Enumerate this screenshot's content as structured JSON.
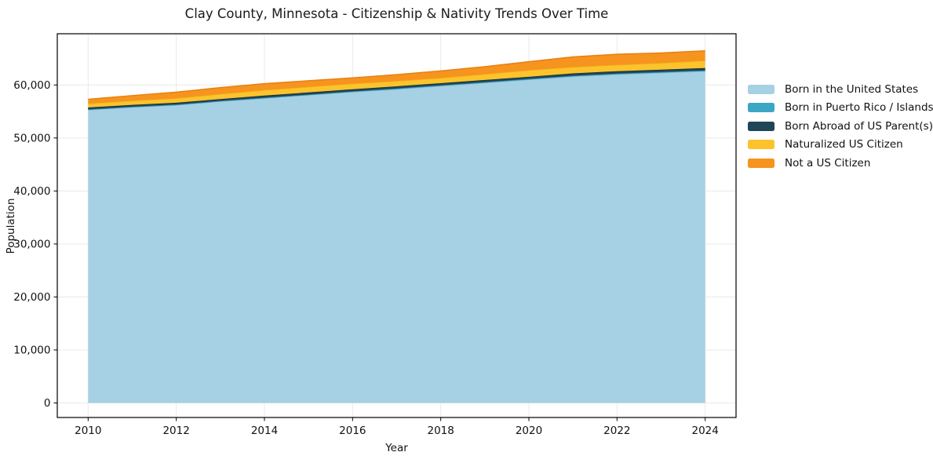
{
  "chart_data": {
    "type": "area",
    "variant": "stacked",
    "title": "Clay County, Minnesota - Citizenship & Nativity Trends Over Time",
    "xlabel": "Year",
    "ylabel": "Population",
    "x": [
      2010,
      2011,
      2012,
      2013,
      2014,
      2015,
      2016,
      2017,
      2018,
      2019,
      2020,
      2021,
      2022,
      2023,
      2024
    ],
    "series": [
      {
        "name": "Born in the United States",
        "color": "#a6d0e4",
        "edge_color": "#8cc0d8",
        "values": [
          55300,
          55800,
          56200,
          56900,
          57500,
          58100,
          58700,
          59200,
          59800,
          60400,
          61000,
          61600,
          62000,
          62300,
          62600
        ]
      },
      {
        "name": "Born in Puerto Rico / Islands",
        "color": "#3da6c2",
        "edge_color": "#2e8dad",
        "values": [
          100,
          100,
          100,
          100,
          100,
          100,
          100,
          150,
          150,
          150,
          150,
          150,
          150,
          150,
          150
        ]
      },
      {
        "name": "Born Abroad of US Parent(s)",
        "color": "#1f4557",
        "edge_color": "#152f3d",
        "values": [
          350,
          350,
          350,
          350,
          400,
          400,
          400,
          400,
          400,
          400,
          400,
          450,
          450,
          450,
          450
        ]
      },
      {
        "name": "Naturalized US Citizen",
        "color": "#fcc32d",
        "edge_color": "#edb118",
        "values": [
          750,
          800,
          850,
          950,
          1050,
          1050,
          1050,
          1000,
          1000,
          1100,
          1250,
          1200,
          1200,
          1250,
          1400
        ]
      },
      {
        "name": "Not a US Citizen",
        "color": "#f6941f",
        "edge_color": "#e8800e",
        "values": [
          800,
          950,
          1150,
          1200,
          1200,
          1150,
          1100,
          1200,
          1300,
          1400,
          1600,
          1900,
          2000,
          1900,
          1850
        ]
      }
    ],
    "xlim": [
      2009.3,
      2024.7
    ],
    "ylim": [
      -2740,
      69670
    ],
    "xticks": {
      "values": [
        2010,
        2012,
        2014,
        2016,
        2018,
        2020,
        2022,
        2024
      ],
      "labels": [
        "2010",
        "2012",
        "2014",
        "2016",
        "2018",
        "2020",
        "2022",
        "2024"
      ]
    },
    "yticks": {
      "values": [
        0,
        10000,
        20000,
        30000,
        40000,
        50000,
        60000
      ],
      "labels": [
        "0",
        "10,000",
        "20,000",
        "30,000",
        "40,000",
        "50,000",
        "60,000"
      ]
    },
    "grid": true,
    "grid_color": "#e9e9e9",
    "spine_color": "#000000",
    "background_color": "#ffffff",
    "legend_position": "right-of-plot",
    "legend_frame": false
  }
}
